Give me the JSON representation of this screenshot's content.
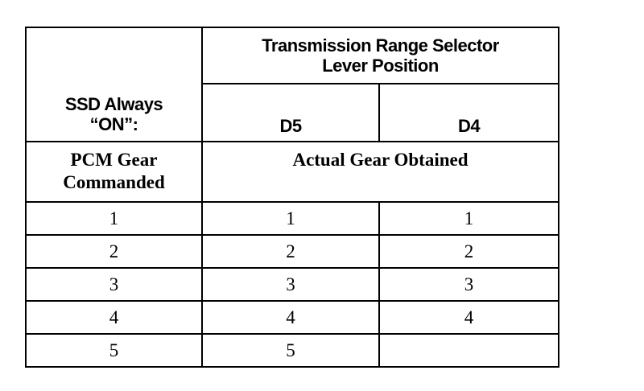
{
  "header": {
    "ssd_line1": "SSD Always",
    "ssd_line2": "“ON”:",
    "trs_line1": "Transmission Range Selector",
    "trs_line2": "Lever Position",
    "col_d5": "D5",
    "col_d4": "D4",
    "pcm_line1": "PCM Gear",
    "pcm_line2": "Commanded",
    "actual": "Actual Gear Obtained"
  },
  "rows": [
    {
      "pcm": "1",
      "d5": "1",
      "d4": "1"
    },
    {
      "pcm": "2",
      "d5": "2",
      "d4": "2"
    },
    {
      "pcm": "3",
      "d5": "3",
      "d4": "3"
    },
    {
      "pcm": "4",
      "d5": "4",
      "d4": "4"
    },
    {
      "pcm": "5",
      "d5": "5",
      "d4": ""
    }
  ]
}
